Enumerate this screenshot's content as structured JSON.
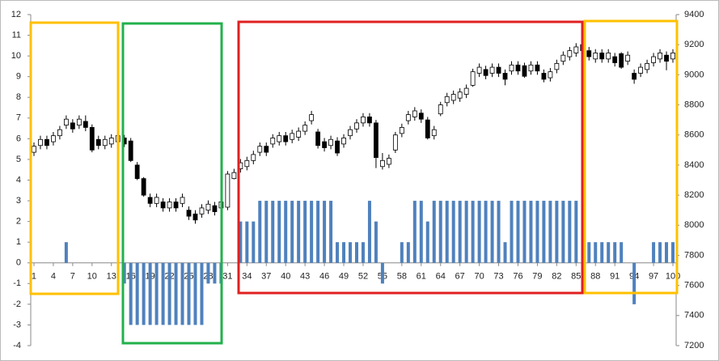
{
  "chart_data": {
    "type": "combo",
    "categories": [
      1,
      null,
      null,
      4,
      null,
      null,
      7,
      null,
      null,
      10,
      null,
      null,
      13,
      null,
      null,
      16,
      null,
      null,
      19,
      null,
      null,
      22,
      null,
      null,
      25,
      null,
      null,
      28,
      null,
      null,
      31,
      null,
      null,
      34,
      null,
      null,
      37,
      null,
      null,
      40,
      null,
      null,
      43,
      null,
      null,
      46,
      null,
      null,
      49,
      null,
      null,
      52,
      null,
      null,
      55,
      null,
      null,
      58,
      null,
      null,
      61,
      null,
      null,
      64,
      null,
      null,
      67,
      null,
      null,
      70,
      null,
      null,
      73,
      null,
      null,
      76,
      null,
      null,
      79,
      null,
      null,
      82,
      null,
      null,
      85,
      null,
      null,
      88,
      null,
      null,
      91,
      null,
      null,
      94,
      null,
      null,
      97,
      null,
      null,
      100
    ],
    "ylim": [
      -4,
      12
    ],
    "yticks": [
      -4,
      -3,
      -2,
      -1,
      0,
      1,
      2,
      3,
      4,
      5,
      6,
      7,
      8,
      9,
      10,
      11,
      12
    ],
    "y2lim": [
      7200,
      9400
    ],
    "y2ticks": [
      7200,
      7400,
      7600,
      7800,
      8000,
      8200,
      8400,
      8600,
      8800,
      9000,
      9200,
      9400
    ],
    "series": [
      {
        "type": "bar",
        "color": "#4f81bd",
        "values": [
          0,
          0,
          0,
          0,
          0,
          1,
          0,
          0,
          0,
          0,
          0,
          0,
          0,
          0,
          -1,
          -3,
          -3,
          -3,
          -3,
          -3,
          -3,
          -3,
          -3,
          -3,
          -3,
          -3,
          -3,
          -1,
          -1,
          -1,
          0,
          0,
          2,
          2,
          2,
          3,
          3,
          3,
          3,
          3,
          3,
          3,
          3,
          3,
          3,
          3,
          3,
          1,
          1,
          1,
          1,
          1,
          3,
          2,
          -1,
          0,
          0,
          1,
          1,
          3,
          3,
          2,
          3,
          3,
          3,
          3,
          3,
          3,
          3,
          3,
          3,
          3,
          3,
          1,
          3,
          3,
          3,
          3,
          3,
          3,
          3,
          3,
          3,
          3,
          3,
          0,
          1,
          1,
          1,
          1,
          1,
          1,
          0,
          -2,
          0,
          0,
          1,
          1,
          1,
          1
        ]
      },
      {
        "type": "candlestick",
        "axis": "y2",
        "color": "#000000",
        "open": [
          8485,
          8530,
          8570,
          8555,
          8595,
          8665,
          8680,
          8665,
          8690,
          8650,
          8570,
          8530,
          8540,
          8555,
          8580,
          8560,
          8400,
          8310,
          8185,
          8145,
          8155,
          8115,
          8155,
          8145,
          8100,
          8075,
          8075,
          8100,
          8130,
          8115,
          8120,
          8310,
          8375,
          8390,
          8430,
          8485,
          8525,
          8540,
          8555,
          8595,
          8570,
          8585,
          8625,
          8695,
          8620,
          8555,
          8530,
          8560,
          8540,
          8595,
          8640,
          8680,
          8720,
          8680,
          8390,
          8405,
          8500,
          8610,
          8695,
          8720,
          8745,
          8700,
          8595,
          8740,
          8815,
          8830,
          8845,
          8870,
          8930,
          9010,
          9035,
          9010,
          9050,
          9010,
          9025,
          9065,
          9060,
          9025,
          9065,
          9010,
          8980,
          9035,
          9090,
          9120,
          9145,
          9200,
          9160,
          9105,
          9145,
          9105,
          9120,
          9140,
          9090,
          9010,
          9010,
          9035,
          9080,
          9105,
          9130,
          9105
        ],
        "high": [
          8550,
          8595,
          8595,
          8620,
          8660,
          8730,
          8705,
          8730,
          8730,
          8670,
          8595,
          8595,
          8605,
          8620,
          8600,
          8580,
          8420,
          8320,
          8210,
          8210,
          8180,
          8180,
          8180,
          8210,
          8125,
          8100,
          8140,
          8165,
          8155,
          8180,
          8360,
          8375,
          8440,
          8455,
          8495,
          8550,
          8550,
          8605,
          8620,
          8620,
          8635,
          8650,
          8690,
          8760,
          8640,
          8580,
          8595,
          8585,
          8605,
          8660,
          8705,
          8745,
          8745,
          8700,
          8480,
          8470,
          8620,
          8675,
          8760,
          8785,
          8770,
          8720,
          8660,
          8820,
          8880,
          8895,
          8910,
          8935,
          9040,
          9075,
          9060,
          9075,
          9075,
          9035,
          9090,
          9090,
          9080,
          9090,
          9090,
          9035,
          9045,
          9100,
          9155,
          9185,
          9210,
          9225,
          9185,
          9170,
          9170,
          9170,
          9145,
          9150,
          9155,
          9035,
          9075,
          9100,
          9145,
          9170,
          9155,
          9170
        ],
        "low": [
          8460,
          8505,
          8505,
          8530,
          8570,
          8640,
          8615,
          8640,
          8625,
          8485,
          8505,
          8505,
          8515,
          8530,
          8520,
          8420,
          8300,
          8190,
          8120,
          8120,
          8090,
          8090,
          8090,
          8120,
          8035,
          8010,
          8050,
          8075,
          8065,
          8090,
          8100,
          8305,
          8350,
          8365,
          8405,
          8460,
          8460,
          8515,
          8530,
          8530,
          8545,
          8560,
          8600,
          8670,
          8510,
          8490,
          8505,
          8460,
          8515,
          8570,
          8615,
          8655,
          8655,
          8380,
          8370,
          8380,
          8480,
          8585,
          8670,
          8695,
          8680,
          8570,
          8570,
          8725,
          8790,
          8805,
          8820,
          8845,
          8920,
          8985,
          8970,
          8985,
          8985,
          8930,
          9000,
          9000,
          8980,
          9000,
          9000,
          8950,
          8955,
          9010,
          9065,
          9095,
          9120,
          9135,
          9095,
          9080,
          9080,
          9080,
          9055,
          9040,
          9065,
          8940,
          8985,
          9010,
          9055,
          9080,
          9030,
          9080
        ],
        "close": [
          8525,
          8570,
          8530,
          8595,
          8635,
          8705,
          8640,
          8705,
          8650,
          8500,
          8530,
          8570,
          8580,
          8595,
          8540,
          8430,
          8310,
          8200,
          8145,
          8185,
          8115,
          8155,
          8115,
          8185,
          8060,
          8035,
          8115,
          8140,
          8090,
          8155,
          8340,
          8350,
          8415,
          8430,
          8470,
          8525,
          8485,
          8580,
          8595,
          8555,
          8610,
          8625,
          8665,
          8735,
          8530,
          8515,
          8570,
          8480,
          8580,
          8635,
          8680,
          8720,
          8680,
          8450,
          8430,
          8445,
          8600,
          8650,
          8735,
          8760,
          8705,
          8580,
          8635,
          8800,
          8855,
          8870,
          8885,
          8910,
          9020,
          9050,
          8995,
          9050,
          9010,
          8970,
          9065,
          9025,
          8990,
          9065,
          9025,
          8970,
          9020,
          9075,
          9130,
          9160,
          9185,
          9160,
          9120,
          9145,
          9105,
          9145,
          9080,
          9050,
          9130,
          8970,
          9050,
          9075,
          9120,
          9145,
          9090,
          9145
        ]
      }
    ]
  }
}
